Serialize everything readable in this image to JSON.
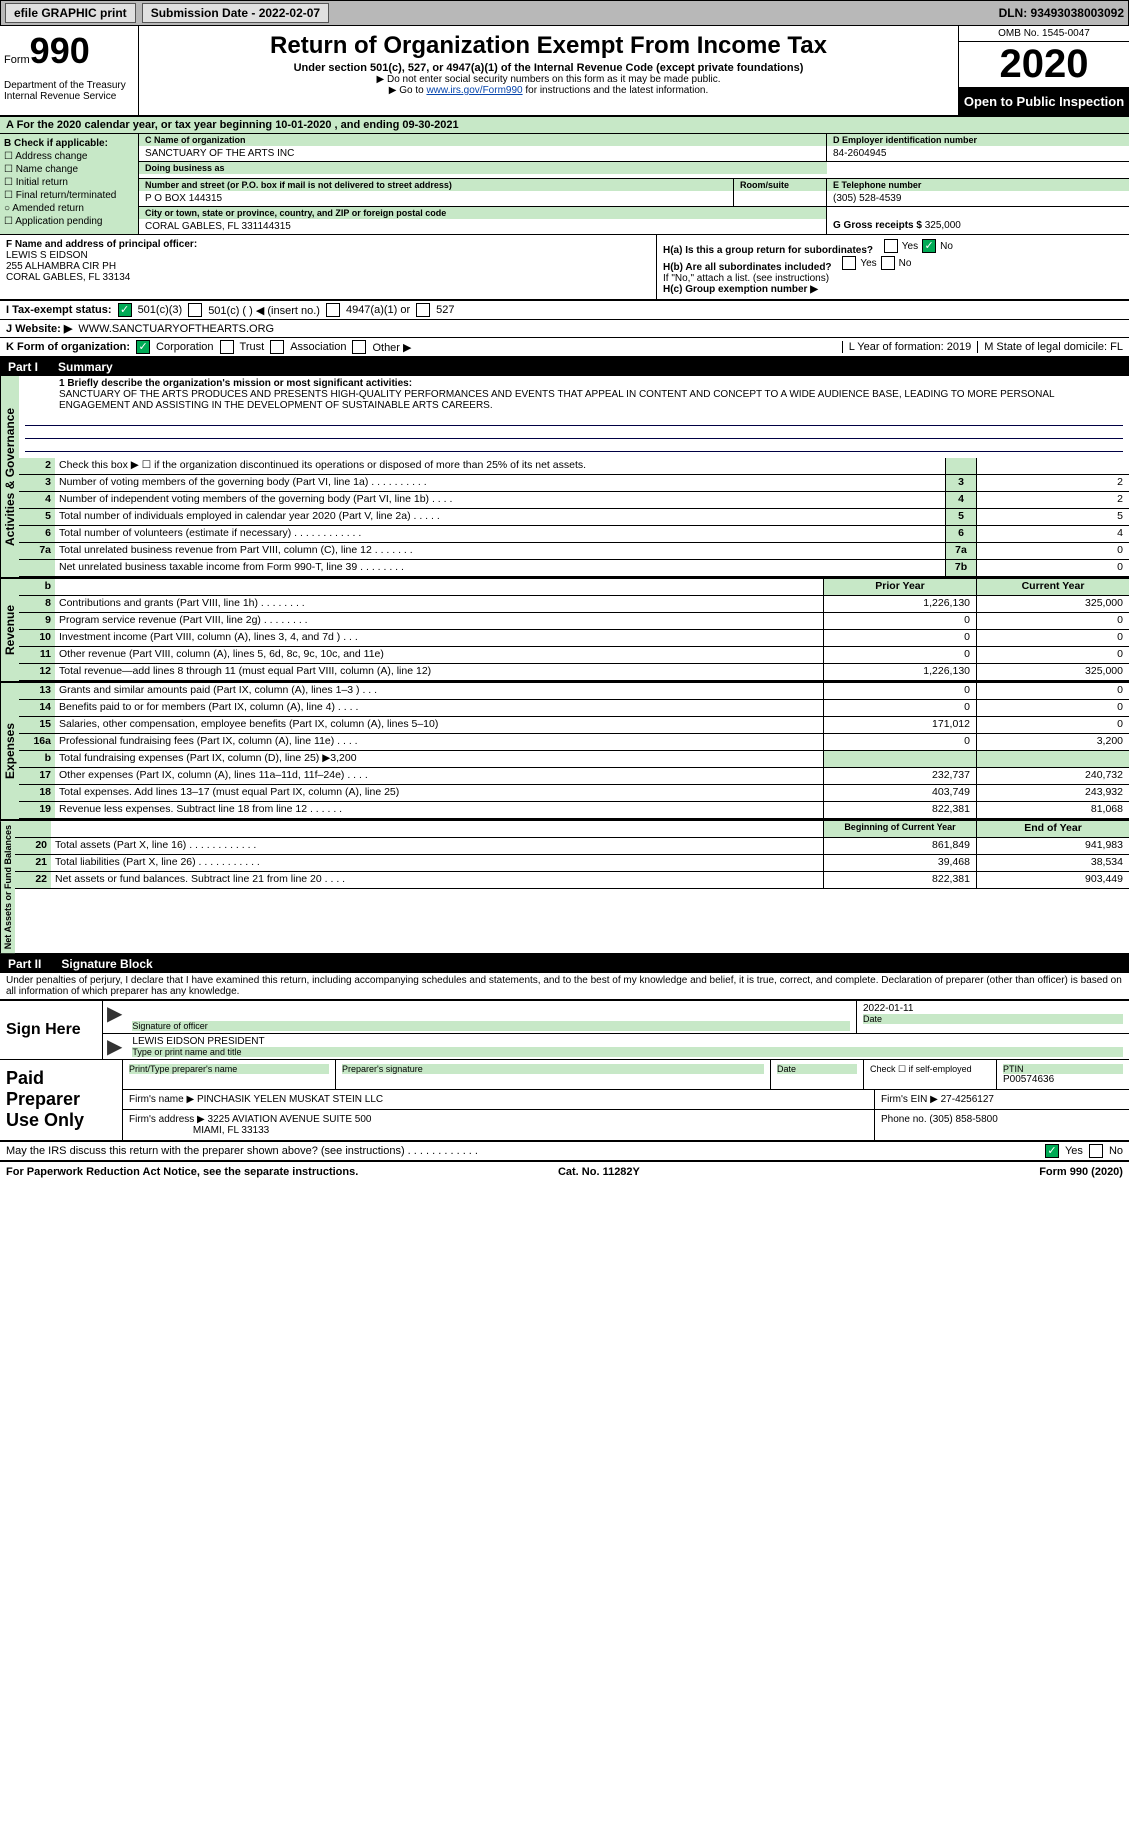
{
  "topbar": {
    "efile": "efile GRAPHIC print",
    "submission_label": "Submission Date - 2022-02-07",
    "dln_label": "DLN: 93493038003092"
  },
  "header": {
    "form_word": "Form",
    "form_num": "990",
    "dept": "Department of the Treasury Internal Revenue Service",
    "title": "Return of Organization Exempt From Income Tax",
    "sub": "Under section 501(c), 527, or 4947(a)(1) of the Internal Revenue Code (except private foundations)",
    "note1": "▶ Do not enter social security numbers on this form as it may be made public.",
    "note2_pre": "▶ Go to ",
    "note2_link": "www.irs.gov/Form990",
    "note2_post": " for instructions and the latest information.",
    "omb": "OMB No. 1545-0047",
    "year": "2020",
    "open": "Open to Public Inspection"
  },
  "line_a": "A For the 2020 calendar year, or tax year beginning 10-01-2020   , and ending 09-30-2021",
  "box_b": {
    "label": "B Check if applicable:",
    "opts": [
      "Address change",
      "Name change",
      "Initial return",
      "Final return/terminated",
      "Amended return",
      "Application pending"
    ]
  },
  "box_c": {
    "label": "C Name of organization",
    "name": "SANCTUARY OF THE ARTS INC",
    "dba_label": "Doing business as",
    "addr_label": "Number and street (or P.O. box if mail is not delivered to street address)",
    "room_label": "Room/suite",
    "addr": "P O BOX 144315",
    "city_label": "City or town, state or province, country, and ZIP or foreign postal code",
    "city": "CORAL GABLES, FL  331144315"
  },
  "box_d": {
    "label": "D Employer identification number",
    "val": "84-2604945"
  },
  "box_e": {
    "label": "E Telephone number",
    "val": "(305) 528-4539"
  },
  "box_g": {
    "label": "G Gross receipts $",
    "val": "325,000"
  },
  "box_f": {
    "label": "F Name and address of principal officer:",
    "name": "LEWIS S EIDSON",
    "addr1": "255 ALHAMBRA CIR PH",
    "addr2": "CORAL GABLES, FL  33134"
  },
  "box_h": {
    "ha": "H(a)  Is this a group return for subordinates?",
    "hb": "H(b)  Are all subordinates included?",
    "hnote": "If \"No,\" attach a list. (see instructions)",
    "hc": "H(c)  Group exemption number ▶",
    "yes": "Yes",
    "no": "No"
  },
  "row_i": {
    "label": "I   Tax-exempt status:",
    "o1": "501(c)(3)",
    "o2": "501(c) (  ) ◀ (insert no.)",
    "o3": "4947(a)(1) or",
    "o4": "527"
  },
  "row_j": {
    "label": "J   Website: ▶",
    "val": "WWW.SANCTUARYOFTHEARTS.ORG"
  },
  "row_k": {
    "label": "K Form of organization:",
    "o1": "Corporation",
    "o2": "Trust",
    "o3": "Association",
    "o4": "Other ▶"
  },
  "row_lm": {
    "l": "L Year of formation: 2019",
    "m": "M State of legal domicile: FL"
  },
  "part1": {
    "num": "Part I",
    "title": "Summary"
  },
  "mission": {
    "label": "1  Briefly describe the organization's mission or most significant activities:",
    "text": "SANCTUARY OF THE ARTS PRODUCES AND PRESENTS HIGH-QUALITY PERFORMANCES AND EVENTS THAT APPEAL IN CONTENT AND CONCEPT TO A WIDE AUDIENCE BASE, LEADING TO MORE PERSONAL ENGAGEMENT AND ASSISTING IN THE DEVELOPMENT OF SUSTAINABLE ARTS CAREERS."
  },
  "gov_rows": [
    {
      "n": "2",
      "t": "Check this box ▶ ☐ if the organization discontinued its operations or disposed of more than 25% of its net assets.",
      "box": "",
      "v": ""
    },
    {
      "n": "3",
      "t": "Number of voting members of the governing body (Part VI, line 1a)   .    .    .    .    .    .    .    .    .    .",
      "box": "3",
      "v": "2"
    },
    {
      "n": "4",
      "t": "Number of independent voting members of the governing body (Part VI, line 1b)   .    .    .    .",
      "box": "4",
      "v": "2"
    },
    {
      "n": "5",
      "t": "Total number of individuals employed in calendar year 2020 (Part V, line 2a)   .    .    .    .    .",
      "box": "5",
      "v": "5"
    },
    {
      "n": "6",
      "t": "Total number of volunteers (estimate if necessary)    .    .    .    .    .    .    .    .    .    .    .    .",
      "box": "6",
      "v": "4"
    },
    {
      "n": "7a",
      "t": "Total unrelated business revenue from Part VIII, column (C), line 12   .    .    .    .    .    .    .",
      "box": "7a",
      "v": "0"
    },
    {
      "n": "",
      "t": "Net unrelated business taxable income from Form 990-T, line 39    .    .    .    .    .    .    .    .",
      "box": "7b",
      "v": "0"
    }
  ],
  "two_col_hdr": {
    "b": "b",
    "prior": "Prior Year",
    "curr": "Current Year"
  },
  "rev_rows": [
    {
      "n": "8",
      "t": "Contributions and grants (Part VIII, line 1h)   .    .    .    .    .    .    .    .",
      "p": "1,226,130",
      "c": "325,000"
    },
    {
      "n": "9",
      "t": "Program service revenue (Part VIII, line 2g)   .    .    .    .    .    .    .    .",
      "p": "0",
      "c": "0"
    },
    {
      "n": "10",
      "t": "Investment income (Part VIII, column (A), lines 3, 4, and 7d )   .    .    .",
      "p": "0",
      "c": "0"
    },
    {
      "n": "11",
      "t": "Other revenue (Part VIII, column (A), lines 5, 6d, 8c, 9c, 10c, and 11e)",
      "p": "0",
      "c": "0"
    },
    {
      "n": "12",
      "t": "Total revenue—add lines 8 through 11 (must equal Part VIII, column (A), line 12)",
      "p": "1,226,130",
      "c": "325,000"
    }
  ],
  "exp_rows": [
    {
      "n": "13",
      "t": "Grants and similar amounts paid (Part IX, column (A), lines 1–3 )   .    .    .",
      "p": "0",
      "c": "0"
    },
    {
      "n": "14",
      "t": "Benefits paid to or for members (Part IX, column (A), line 4)   .    .    .    .",
      "p": "0",
      "c": "0"
    },
    {
      "n": "15",
      "t": "Salaries, other compensation, employee benefits (Part IX, column (A), lines 5–10)",
      "p": "171,012",
      "c": "0"
    },
    {
      "n": "16a",
      "t": "Professional fundraising fees (Part IX, column (A), line 11e)   .    .    .    .",
      "p": "0",
      "c": "3,200"
    },
    {
      "n": "b",
      "t": "Total fundraising expenses (Part IX, column (D), line 25) ▶3,200",
      "p": "",
      "c": ""
    },
    {
      "n": "17",
      "t": "Other expenses (Part IX, column (A), lines 11a–11d, 11f–24e)   .    .    .    .",
      "p": "232,737",
      "c": "240,732"
    },
    {
      "n": "18",
      "t": "Total expenses. Add lines 13–17 (must equal Part IX, column (A), line 25)",
      "p": "403,749",
      "c": "243,932"
    },
    {
      "n": "19",
      "t": "Revenue less expenses. Subtract line 18 from line 12   .    .    .    .    .    .",
      "p": "822,381",
      "c": "81,068"
    }
  ],
  "na_hdr": {
    "b": "Beginning of Current Year",
    "e": "End of Year"
  },
  "na_rows": [
    {
      "n": "20",
      "t": "Total assets (Part X, line 16)   .    .    .    .    .    .    .    .    .    .    .    .",
      "p": "861,849",
      "c": "941,983"
    },
    {
      "n": "21",
      "t": "Total liabilities (Part X, line 26)   .    .    .    .    .    .    .    .    .    .    .",
      "p": "39,468",
      "c": "38,534"
    },
    {
      "n": "22",
      "t": "Net assets or fund balances. Subtract line 21 from line 20   .    .    .    .",
      "p": "822,381",
      "c": "903,449"
    }
  ],
  "part2": {
    "num": "Part II",
    "title": "Signature Block"
  },
  "declare": "Under penalties of perjury, I declare that I have examined this return, including accompanying schedules and statements, and to the best of my knowledge and belief, it is true, correct, and complete. Declaration of preparer (other than officer) is based on all information of which preparer has any knowledge.",
  "sign": {
    "here": "Sign Here",
    "sig_lbl": "Signature of officer",
    "date": "2022-01-11",
    "date_lbl": "Date",
    "name": "LEWIS EIDSON  PRESIDENT",
    "name_lbl": "Type or print name and title"
  },
  "prep": {
    "title": "Paid Preparer Use Only",
    "h1": "Print/Type preparer's name",
    "h2": "Preparer's signature",
    "h3": "Date",
    "h4": "Check ☐ if self-employed",
    "h5": "PTIN",
    "ptin": "P00574636",
    "firm_lbl": "Firm's name    ▶",
    "firm": "PINCHASIK YELEN MUSKAT STEIN LLC",
    "ein_lbl": "Firm's EIN ▶",
    "ein": "27-4256127",
    "addr_lbl": "Firm's address ▶",
    "addr1": "3225 AVIATION AVENUE SUITE 500",
    "addr2": "MIAMI, FL  33133",
    "phone_lbl": "Phone no.",
    "phone": "(305) 858-5800"
  },
  "discuss": "May the IRS discuss this return with the preparer shown above? (see instructions)   .    .    .    .    .    .    .    .    .    .    .    .",
  "footer": {
    "l": "For Paperwork Reduction Act Notice, see the separate instructions.",
    "c": "Cat. No. 11282Y",
    "r": "Form 990 (2020)"
  },
  "vtabs": {
    "gov": "Activities & Governance",
    "rev": "Revenue",
    "exp": "Expenses",
    "na": "Net Assets or Fund Balances"
  }
}
